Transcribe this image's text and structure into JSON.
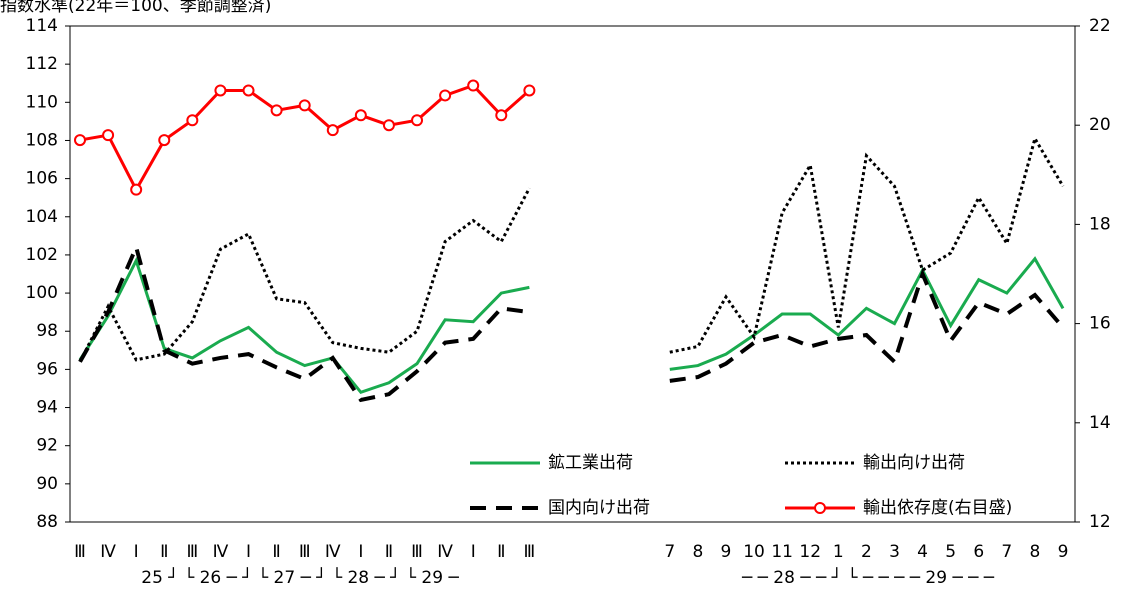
{
  "chart_data": {
    "type": "line",
    "y_axis_label": "指数水準(22年＝100、季節調整済)",
    "categories": [
      "Ⅲ",
      "Ⅳ",
      "Ⅰ",
      "Ⅱ",
      "Ⅲ",
      "Ⅳ",
      "Ⅰ",
      "Ⅱ",
      "Ⅲ",
      "Ⅳ",
      "Ⅰ",
      "Ⅱ",
      "Ⅲ",
      "Ⅳ",
      "Ⅰ",
      "Ⅱ",
      "Ⅲ",
      null,
      null,
      null,
      null,
      "7",
      "8",
      "9",
      "10",
      "11",
      "12",
      "1",
      "2",
      "3",
      "4",
      "5",
      "6",
      "7",
      "8",
      "9"
    ],
    "period_labels": [
      "25 ┘ └ 26 ─ ┘ └ 27 ─ ┘ └ 28 ─ ┘ └ 29 ─",
      "─ ─ 28 ─ ─ ┘ └ ─ ─ ─ ─ 29 ─ ─ ─"
    ],
    "series": [
      {
        "name": "鉱工業出荷",
        "color": "#1aab4f",
        "style": "solid",
        "values": [
          96.5,
          98.8,
          101.7,
          97.1,
          96.6,
          97.5,
          98.2,
          96.9,
          96.2,
          96.6,
          94.8,
          95.3,
          96.3,
          98.6,
          98.5,
          100.0,
          100.3,
          null,
          null,
          null,
          null,
          96.0,
          96.2,
          96.8,
          97.8,
          98.9,
          98.9,
          97.8,
          99.2,
          98.4,
          101.2,
          98.3,
          100.7,
          100.0,
          101.8,
          99.2
        ]
      },
      {
        "name": "輸出向け出荷",
        "color": "#000000",
        "style": "dotted",
        "values": [
          96.4,
          99.3,
          96.5,
          96.8,
          98.5,
          102.3,
          103.1,
          99.7,
          99.5,
          97.4,
          97.1,
          96.9,
          98.0,
          102.7,
          103.8,
          102.7,
          105.5,
          null,
          null,
          null,
          null,
          96.9,
          97.2,
          99.8,
          97.7,
          104.2,
          106.7,
          98.2,
          107.2,
          105.6,
          101.2,
          102.1,
          105.0,
          102.6,
          108.1,
          105.6
        ]
      },
      {
        "name": "国内向け出荷",
        "color": "#000000",
        "style": "dashed",
        "values": [
          96.4,
          99.0,
          102.4,
          97.0,
          96.3,
          96.6,
          96.8,
          96.1,
          95.5,
          96.6,
          94.4,
          94.7,
          95.9,
          97.4,
          97.6,
          99.2,
          99.0,
          null,
          null,
          null,
          null,
          95.4,
          95.6,
          96.3,
          97.4,
          97.8,
          97.2,
          97.6,
          97.8,
          96.4,
          101.0,
          97.5,
          99.5,
          98.9,
          99.9,
          98.2
        ]
      },
      {
        "name": "輸出依存度(右目盛)",
        "color": "#ff0000",
        "style": "solid",
        "marker": "circle",
        "axis": "y2",
        "values": [
          19.7,
          19.8,
          18.7,
          19.7,
          20.1,
          20.7,
          20.7,
          20.3,
          20.4,
          19.9,
          20.2,
          20.0,
          20.1,
          20.6,
          20.8,
          20.2,
          20.7,
          null,
          null,
          null,
          null,
          null,
          null,
          null,
          null,
          null,
          null,
          null,
          null,
          null,
          null,
          null,
          null,
          null,
          null,
          null
        ]
      }
    ],
    "ylim": [
      88,
      114
    ],
    "yticks": [
      88,
      90,
      92,
      94,
      96,
      98,
      100,
      102,
      104,
      106,
      108,
      110,
      112,
      114
    ],
    "y2lim": [
      12,
      22
    ],
    "y2ticks": [
      12,
      14,
      16,
      18,
      20,
      22
    ],
    "grid": false,
    "legend": "bottom-right"
  }
}
